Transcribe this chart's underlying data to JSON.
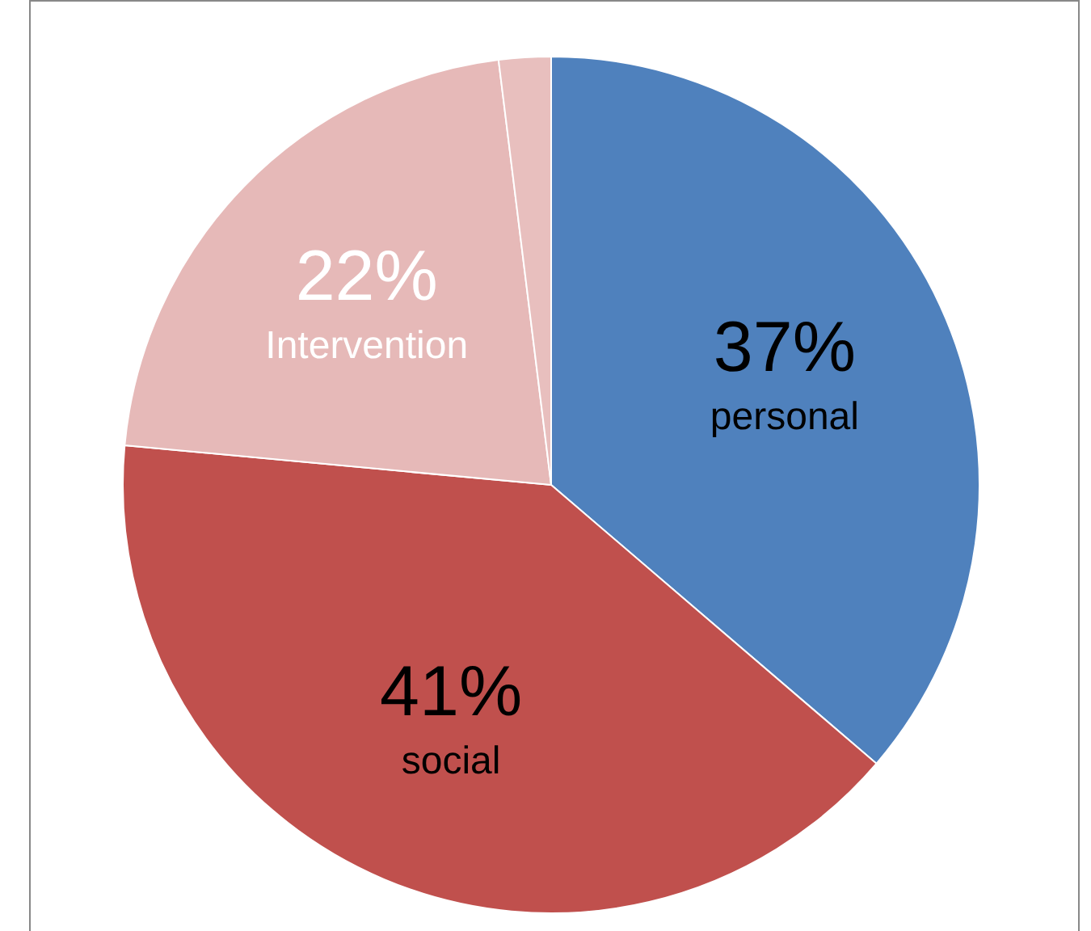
{
  "chart_data": {
    "type": "pie",
    "categories": [
      "personal",
      "social",
      "Intervention",
      null
    ],
    "values": [
      37,
      41,
      22,
      2
    ],
    "value_labels": [
      "37%",
      "41%",
      "22%",
      null
    ],
    "colors": [
      "#4f81bd",
      "#c0504d",
      "#e6b9b8",
      "#e8bfbe"
    ]
  }
}
